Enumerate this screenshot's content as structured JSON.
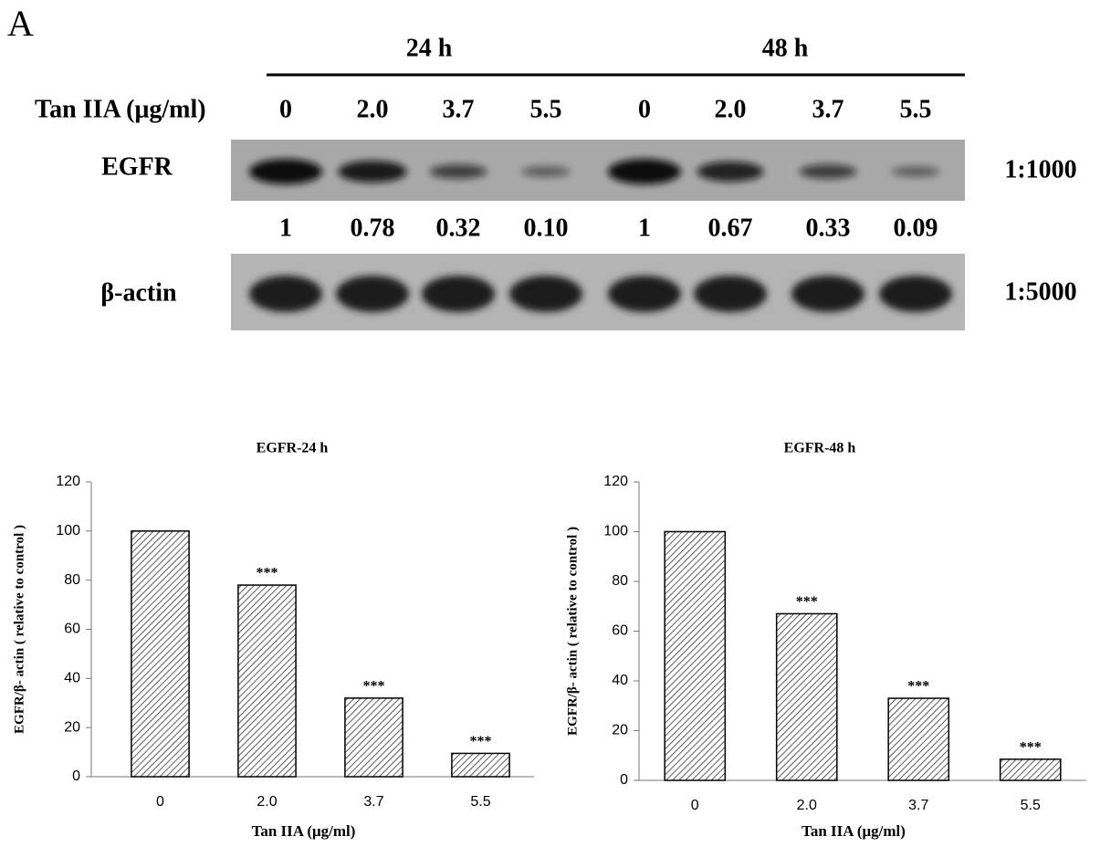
{
  "panel_label": "A",
  "blot": {
    "groups": [
      "24 h",
      "48 h"
    ],
    "row_label": "Tan IIA (μg/ml)",
    "doses": [
      "0",
      "2.0",
      "3.7",
      "5.5",
      "0",
      "2.0",
      "3.7",
      "5.5"
    ],
    "egfr": {
      "name": "EGFR",
      "dilution": "1:1000",
      "quant": [
        "1",
        "0.78",
        "0.32",
        "0.10",
        "1",
        "0.67",
        "0.33",
        "0.09"
      ]
    },
    "actin": {
      "name": "β-actin",
      "dilution": "1:5000"
    }
  },
  "chart_data": [
    {
      "type": "bar",
      "title": "EGFR-24 h",
      "xlabel": "Tan IIA (μg/ml)",
      "ylabel": "EGFR/β- actin ( relative to control )",
      "categories": [
        "0",
        "2.0",
        "3.7",
        "5.5"
      ],
      "values": [
        100,
        78,
        32,
        9.5
      ],
      "annotations": [
        null,
        "***",
        "***",
        "***"
      ],
      "color": "#333333",
      "ylim": [
        0,
        120
      ],
      "yticks": [
        0,
        20,
        40,
        60,
        80,
        100,
        120
      ]
    },
    {
      "type": "bar",
      "title": "EGFR-48 h",
      "xlabel": "Tan IIA (μg/ml)",
      "ylabel": "EGFR/β- actin ( relative to control )",
      "categories": [
        "0",
        "2.0",
        "3.7",
        "5.5"
      ],
      "values": [
        100,
        67,
        33,
        8.5
      ],
      "annotations": [
        null,
        "***",
        "***",
        "***"
      ],
      "color": "#333333",
      "ylim": [
        0,
        120
      ],
      "yticks": [
        0,
        20,
        40,
        60,
        80,
        100,
        120
      ]
    }
  ]
}
